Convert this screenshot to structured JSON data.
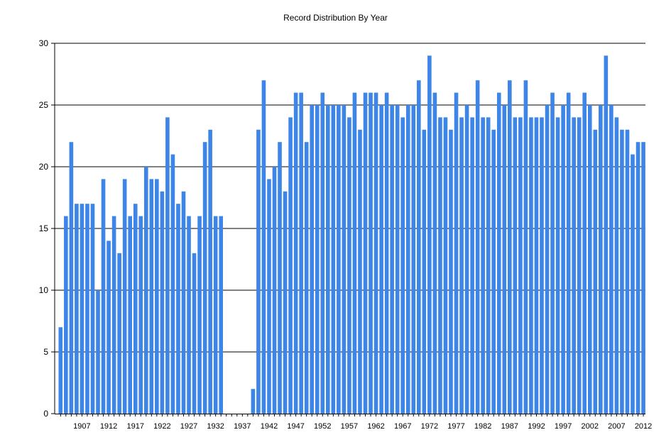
{
  "chart_data": {
    "type": "bar",
    "title": "Record Distribution By Year",
    "xlabel": "",
    "ylabel": "",
    "ylim": [
      0,
      30
    ],
    "yticks": [
      0,
      5,
      10,
      15,
      20,
      25,
      30
    ],
    "grid": true,
    "legend": "none",
    "bar_color": "#3d85e6",
    "x_first_year": 1903,
    "x_last_year": 2012,
    "x_tick_labels": [
      "1907",
      "1912",
      "1917",
      "1922",
      "1927",
      "1932",
      "1937",
      "1942",
      "1947",
      "1952",
      "1957",
      "1962",
      "1967",
      "1972",
      "1977",
      "1982",
      "1987",
      "1992",
      "1997",
      "2002",
      "2007",
      "2012"
    ],
    "values": [
      7,
      16,
      22,
      17,
      17,
      17,
      17,
      10,
      19,
      14,
      16,
      13,
      19,
      16,
      17,
      16,
      20,
      19,
      19,
      18,
      24,
      21,
      17,
      18,
      16,
      13,
      16,
      22,
      23,
      16,
      16,
      0,
      0,
      0,
      0,
      0,
      2,
      23,
      27,
      19,
      20,
      22,
      18,
      24,
      26,
      26,
      22,
      25,
      25,
      26,
      25,
      25,
      25,
      25,
      24,
      26,
      23,
      26,
      26,
      26,
      25,
      26,
      25,
      25,
      24,
      25,
      25,
      27,
      23,
      29,
      26,
      24,
      24,
      23,
      26,
      24,
      25,
      24,
      27,
      24,
      24,
      23,
      26,
      25,
      27,
      24,
      24,
      27,
      24,
      24,
      24,
      25,
      26,
      24,
      25,
      26,
      24,
      24,
      26,
      25,
      23,
      25,
      29,
      25,
      24,
      23,
      23,
      21,
      22,
      22
    ]
  }
}
